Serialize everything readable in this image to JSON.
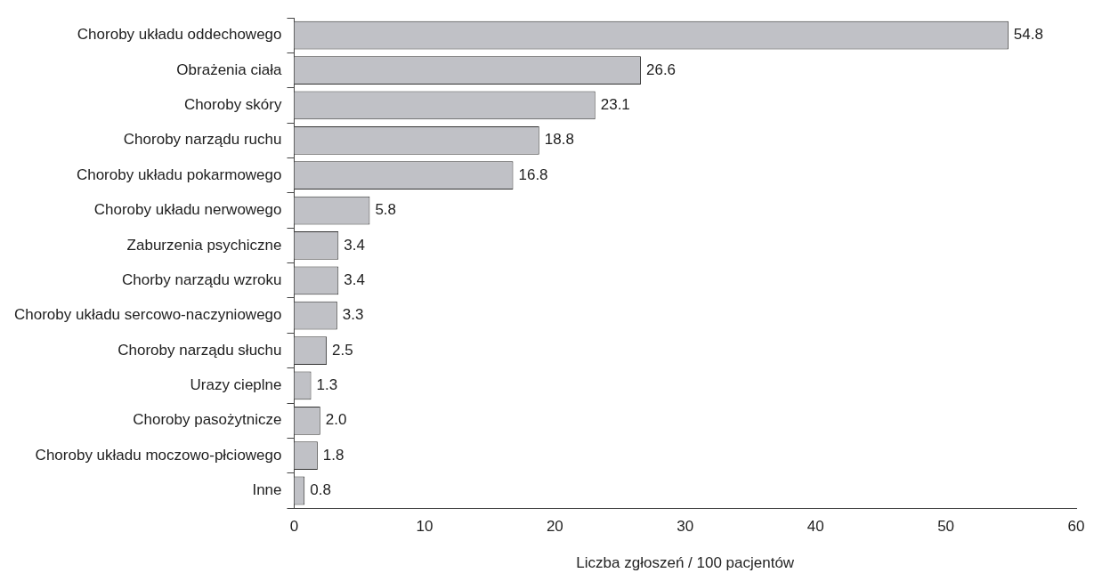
{
  "chart_data": {
    "type": "bar",
    "orientation": "horizontal",
    "xlabel": "Liczba zgłoszeń / 100 pacjentów",
    "categories": [
      "Choroby układu oddechowego",
      "Obrażenia ciała",
      "Choroby skóry",
      "Choroby narządu ruchu",
      "Choroby układu pokarmowego",
      "Choroby układu nerwowego",
      "Zaburzenia psychiczne",
      "Chorby narządu wzroku",
      "Choroby układu sercowo-naczyniowego",
      "Choroby narządu słuchu",
      "Urazy cieplne",
      "Choroby pasożytnicze",
      "Choroby układu moczowo-płciowego",
      "Inne"
    ],
    "values": [
      54.8,
      26.6,
      23.1,
      18.8,
      16.8,
      5.8,
      3.4,
      3.4,
      3.3,
      2.5,
      1.3,
      2.0,
      1.8,
      0.8
    ],
    "value_labels": [
      "54.8",
      "26.6",
      "23.1",
      "18.8",
      "16.8",
      "5.8",
      "3.4",
      "3.4",
      "3.3",
      "2.5",
      "1.3",
      "2.0",
      "1.8",
      "0.8"
    ],
    "color": "#c0c1c6",
    "xlim": [
      0,
      60
    ],
    "xticks": [
      0,
      10,
      20,
      30,
      40,
      50,
      60
    ],
    "grid": false,
    "legend": false
  }
}
